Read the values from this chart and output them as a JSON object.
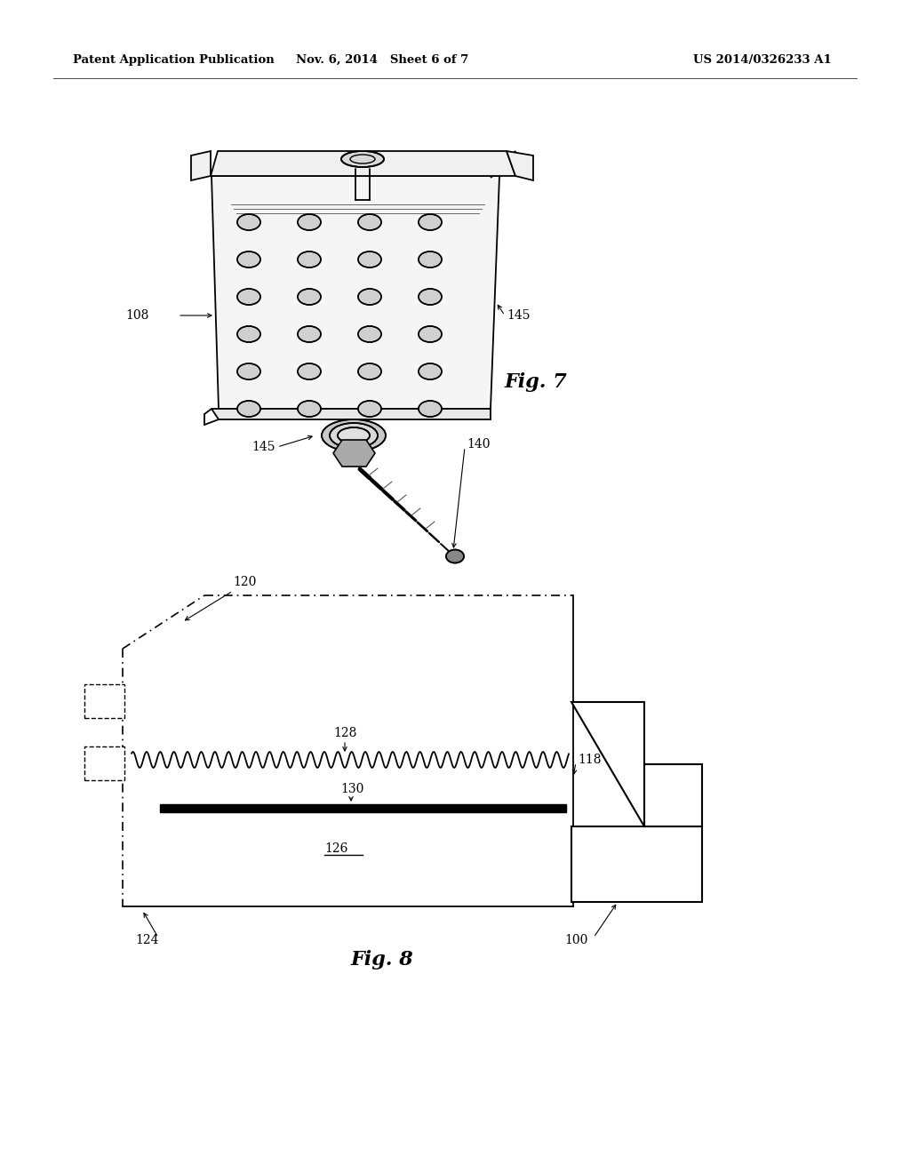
{
  "background_color": "#ffffff",
  "header_left": "Patent Application Publication",
  "header_center": "Nov. 6, 2014   Sheet 6 of 7",
  "header_right": "US 2014/0326233 A1",
  "fig7_label": "Fig. 7",
  "fig8_label": "Fig. 8"
}
